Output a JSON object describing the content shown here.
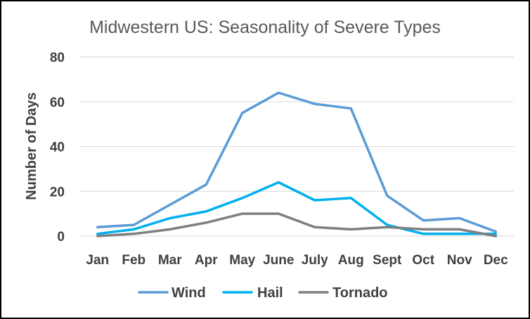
{
  "chart_data": {
    "type": "line",
    "title": "Midwestern US: Seasonality of Severe Types",
    "ylabel": "Number of Days",
    "xlabel": "",
    "categories": [
      "Jan",
      "Feb",
      "Mar",
      "Apr",
      "May",
      "June",
      "July",
      "Aug",
      "Sept",
      "Oct",
      "Nov",
      "Dec"
    ],
    "ylim": [
      0,
      80
    ],
    "yticks": [
      "0",
      "20",
      "40",
      "60",
      "80"
    ],
    "grid": true,
    "legend_position": "bottom",
    "series": [
      {
        "name": "Wind",
        "color": "#5b9bd5",
        "values": [
          4,
          5,
          14,
          23,
          55,
          64,
          59,
          57,
          18,
          7,
          8,
          2
        ]
      },
      {
        "name": "Hail",
        "color": "#00b0f0",
        "values": [
          1,
          3,
          8,
          11,
          17,
          24,
          16,
          17,
          5,
          1,
          1,
          1
        ]
      },
      {
        "name": "Tornado",
        "color": "#7f7f7f",
        "values": [
          0,
          1,
          3,
          6,
          10,
          10,
          4,
          3,
          4,
          3,
          3,
          0
        ]
      }
    ]
  }
}
